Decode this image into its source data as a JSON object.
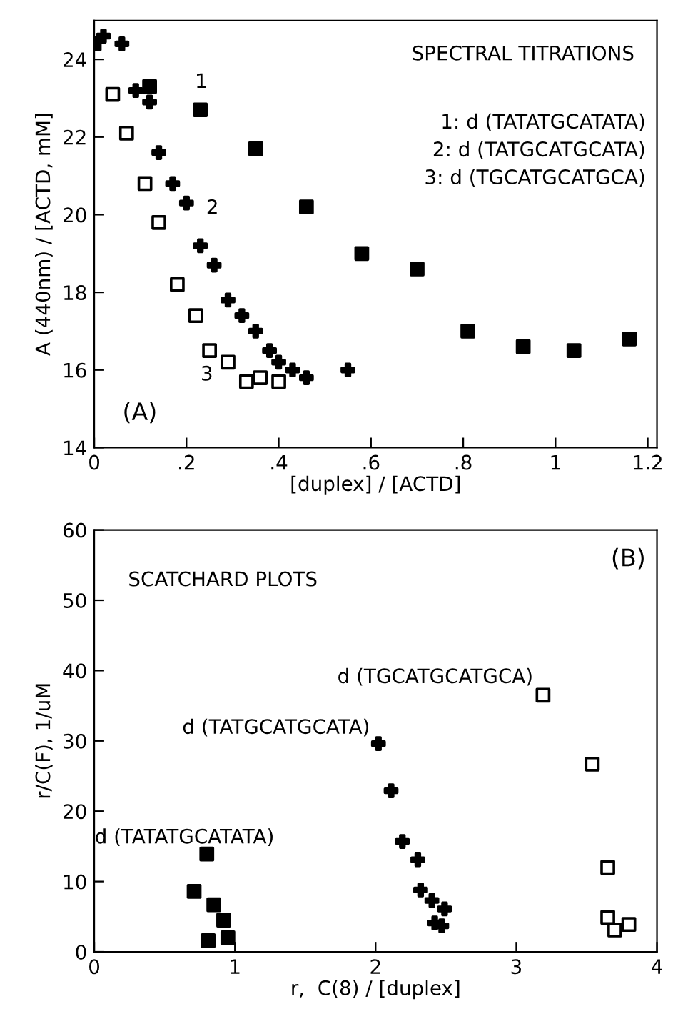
{
  "chart_data": [
    {
      "type": "scatter",
      "title": "SPECTRAL TITRATIONS",
      "xlabel": "[duplex] / [ACTD]",
      "ylabel": "A (440nm) / [ACTD, mM]",
      "xlim": [
        0,
        1.22
      ],
      "ylim": [
        14,
        25
      ],
      "xticks": [
        {
          "value": 0,
          "label": "0"
        },
        {
          "value": 0.2,
          "label": ".2"
        },
        {
          "value": 0.4,
          "label": ".4"
        },
        {
          "value": 0.6,
          "label": ".6"
        },
        {
          "value": 0.8,
          "label": ".8"
        },
        {
          "value": 1,
          "label": "1"
        },
        {
          "value": 1.2,
          "label": "1.2"
        }
      ],
      "yticks": [
        14,
        16,
        18,
        20,
        22,
        24
      ],
      "grid": false,
      "legend": false,
      "series": [
        {
          "marker": "square",
          "color": "#000000",
          "x": [
            0,
            0.12,
            0.23,
            0.35,
            0.46,
            0.58,
            0.7,
            0.81,
            0.93,
            1.04,
            1.16
          ],
          "values": [
            24.4,
            23.3,
            22.7,
            21.7,
            20.2,
            19.0,
            18.6,
            17.0,
            16.6,
            16.5,
            16.8
          ]
        },
        {
          "marker": "cross",
          "color": "#000000",
          "x": [
            0.02,
            0.06,
            0.09,
            0.12,
            0.14,
            0.17,
            0.2,
            0.23,
            0.26,
            0.29,
            0.32,
            0.35,
            0.38,
            0.4,
            0.43,
            0.46,
            0.55
          ],
          "values": [
            24.6,
            24.4,
            23.2,
            22.9,
            21.6,
            20.8,
            20.3,
            19.2,
            18.7,
            17.8,
            17.4,
            17.0,
            16.5,
            16.2,
            16.0,
            15.8,
            16.0
          ]
        },
        {
          "marker": "square",
          "color": "#000000",
          "x": [
            0.04,
            0.07,
            0.11,
            0.14,
            0.18,
            0.22,
            0.25,
            0.29,
            0.33,
            0.36,
            0.4
          ],
          "values": [
            23.1,
            22.1,
            20.8,
            19.8,
            18.2,
            17.4,
            16.5,
            16.2,
            15.7,
            15.8,
            15.7
          ]
        }
      ],
      "annotations": [
        "1",
        "2",
        "3",
        "1: d (TATATGCATATA)",
        "2: d (TATGCATGCATA)",
        "3: d (TGCATGCATGCA)",
        "(A)"
      ]
    },
    {
      "type": "scatter",
      "title": "SCATCHARD PLOTS",
      "xlabel": "r,  C(8) / [duplex]",
      "ylabel": "r/C(F), 1/uM",
      "xlim": [
        0,
        4
      ],
      "ylim": [
        0,
        60
      ],
      "xticks": [
        0,
        1,
        2,
        3,
        4
      ],
      "yticks": [
        0,
        10,
        20,
        30,
        40,
        50,
        60
      ],
      "grid": false,
      "legend": false,
      "series": [
        {
          "marker": "square",
          "color": "#000000",
          "x": [
            0.8,
            0.71,
            0.85,
            0.92,
            0.81,
            0.95
          ],
          "values": [
            13.9,
            8.6,
            6.7,
            4.5,
            1.6,
            2.0
          ]
        },
        {
          "marker": "cross",
          "color": "#000000",
          "x": [
            2.02,
            2.11,
            2.19,
            2.3,
            2.32,
            2.4,
            2.49,
            2.42,
            2.47
          ],
          "values": [
            29.6,
            22.9,
            15.7,
            13.1,
            8.8,
            7.3,
            6.1,
            4.1,
            3.7
          ]
        },
        {
          "marker": "square",
          "color": "#000000",
          "x": [
            3.19,
            3.54,
            3.65,
            3.65,
            3.7,
            3.8
          ],
          "values": [
            36.5,
            26.7,
            12.0,
            4.9,
            3.1,
            3.9
          ]
        }
      ],
      "annotations": [
        "d (TATATGCATATA)",
        "d (TATGCATGCATA)",
        "d (TGCATGCATGCA)",
        "(B)"
      ]
    }
  ]
}
